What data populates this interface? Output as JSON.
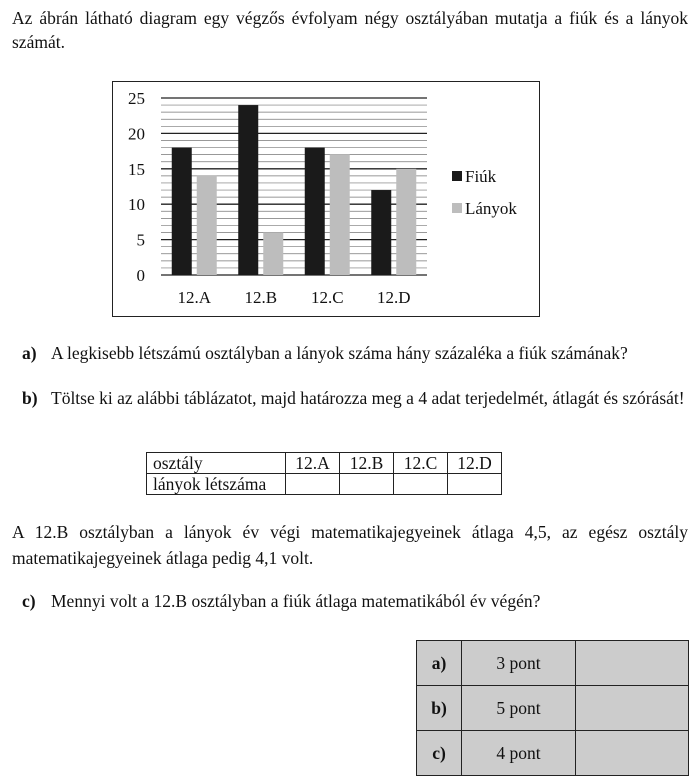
{
  "intro": "Az ábrán látható diagram egy végzős évfolyam négy osztályában mutatja a fiúk és a lányok számát.",
  "chart_data": {
    "type": "bar",
    "categories": [
      "12.A",
      "12.B",
      "12.C",
      "12.D"
    ],
    "series": [
      {
        "name": "Fiúk",
        "values": [
          18,
          24,
          18,
          12
        ],
        "color": "#1a1a1a"
      },
      {
        "name": "Lányok",
        "values": [
          14,
          6,
          17,
          15
        ],
        "color": "#bdbdbd"
      }
    ],
    "yticks": [
      "0",
      "5",
      "10",
      "15",
      "20",
      "25"
    ],
    "ylim": [
      0,
      25
    ],
    "grid": true,
    "legend_position": "right"
  },
  "questions": {
    "a": {
      "letter": "a)",
      "text": "A legkisebb létszámú osztályban a lányok száma hány százaléka a fiúk számának?"
    },
    "b": {
      "letter": "b)",
      "text": "Töltse ki az alábbi táblázatot, majd határozza meg a 4 adat terjedelmét, átlagát és szórását!"
    },
    "c": {
      "letter": "c)",
      "text": "Mennyi volt a 12.B osztályban a fiúk átlaga matematikából év végén?"
    }
  },
  "fill_table": {
    "header_label": "osztály",
    "row_label": "lányok létszáma",
    "columns": [
      "12.A",
      "12.B",
      "12.C",
      "12.D"
    ]
  },
  "paragraph": "A 12.B osztályban a lányok év végi matematikajegyeinek átlaga 4,5, az egész osztály matematikajegyeinek átlaga pedig 4,1 volt.",
  "score_table": [
    {
      "label": "a)",
      "points": "3 pont"
    },
    {
      "label": "b)",
      "points": "5 pont"
    },
    {
      "label": "c)",
      "points": "4 pont"
    }
  ]
}
